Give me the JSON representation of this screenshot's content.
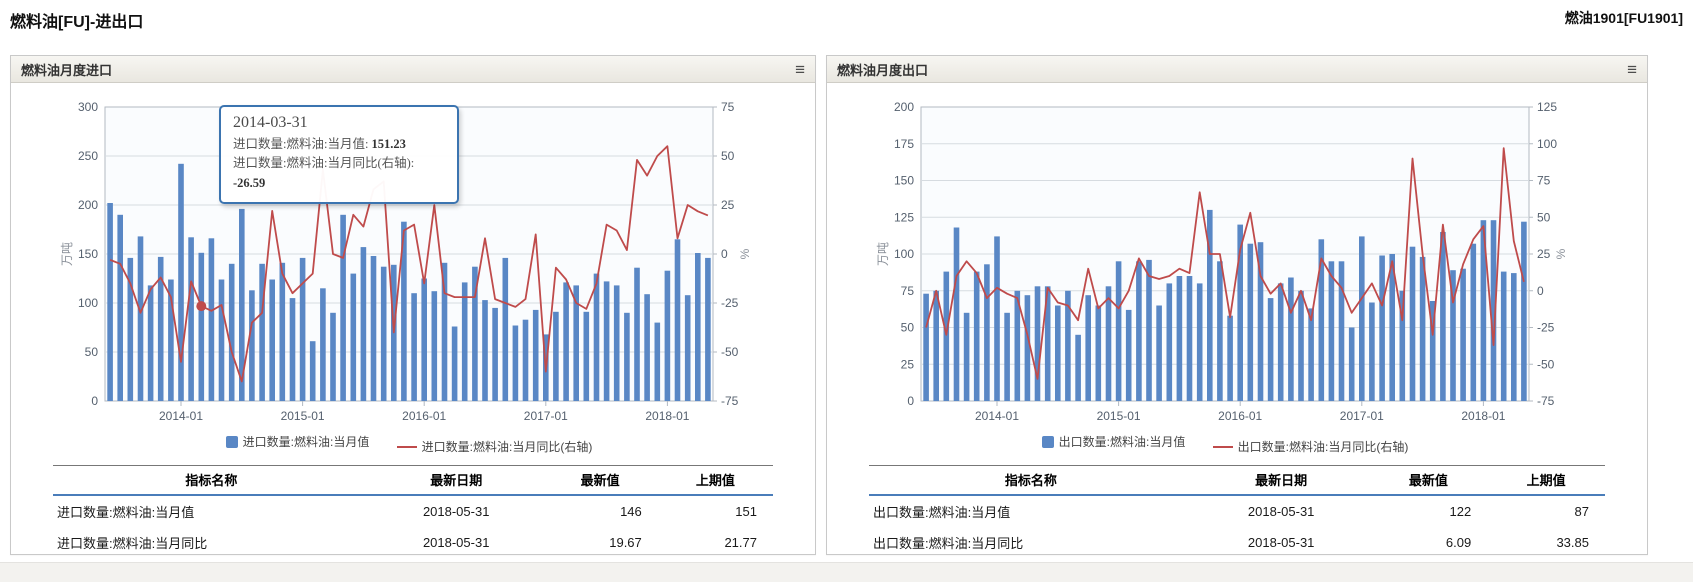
{
  "page": {
    "title": "燃料油[FU]-进出口",
    "contract": "燃油1901[FU1901]"
  },
  "colors": {
    "bar": "#5987c5",
    "line": "#bf4b4b",
    "grid": "#d6dbe0",
    "axis": "#b3bac2",
    "plot_bg": "#fafcfe",
    "accent": "#3b74b0",
    "header_underline": "#4a7dba"
  },
  "months": [
    "2013-06",
    "2013-07",
    "2013-08",
    "2013-09",
    "2013-10",
    "2013-11",
    "2013-12",
    "2014-01",
    "2014-02",
    "2014-03",
    "2014-04",
    "2014-05",
    "2014-06",
    "2014-07",
    "2014-08",
    "2014-09",
    "2014-10",
    "2014-11",
    "2014-12",
    "2015-01",
    "2015-02",
    "2015-03",
    "2015-04",
    "2015-05",
    "2015-06",
    "2015-07",
    "2015-08",
    "2015-09",
    "2015-10",
    "2015-11",
    "2015-12",
    "2016-01",
    "2016-02",
    "2016-03",
    "2016-04",
    "2016-05",
    "2016-06",
    "2016-07",
    "2016-08",
    "2016-09",
    "2016-10",
    "2016-11",
    "2016-12",
    "2017-01",
    "2017-02",
    "2017-03",
    "2017-04",
    "2017-05",
    "2017-06",
    "2017-07",
    "2017-08",
    "2017-09",
    "2017-10",
    "2017-11",
    "2017-12",
    "2018-01",
    "2018-02",
    "2018-03",
    "2018-04",
    "2018-05"
  ],
  "x_ticks": [
    "2014-01",
    "2015-01",
    "2016-01",
    "2017-01",
    "2018-01"
  ],
  "left_panel": {
    "title": "燃料油月度进口",
    "chart_data": {
      "type": "bar+line",
      "ylabel": "万吨",
      "y2label": "%",
      "left_axis": {
        "min": 0,
        "max": 300,
        "step": 50
      },
      "right_axis": {
        "min": -75,
        "max": 75,
        "step": 25
      },
      "series": [
        {
          "name": "进口数量:燃料油:当月值",
          "type": "bar",
          "axis": "left",
          "values": [
            202,
            190,
            146,
            168,
            118,
            147,
            124,
            242,
            167,
            151.23,
            166,
            124,
            140,
            196,
            113,
            140,
            124,
            141,
            105,
            146,
            61,
            115,
            90,
            190,
            130,
            157,
            148,
            137,
            139,
            183,
            110,
            125,
            112,
            141,
            76,
            121,
            137,
            103,
            95,
            146,
            77,
            83,
            93,
            68,
            91,
            121,
            118,
            91,
            130,
            122,
            118,
            90,
            136,
            109,
            80,
            133,
            165,
            108,
            151,
            146
          ]
        },
        {
          "name": "进口数量:燃料油:当月同比(右轴)",
          "type": "line",
          "axis": "right",
          "values": [
            -3,
            -5,
            -15,
            -30,
            -18,
            -12,
            -22,
            -55,
            -14,
            -26.59,
            -29,
            -26,
            -50,
            -65,
            -35,
            -30,
            22,
            -10,
            -20,
            -15,
            -10,
            43,
            0,
            -2,
            20,
            14,
            33,
            37,
            -40,
            12,
            15,
            -15,
            25,
            -20,
            -22,
            -22,
            -22,
            8,
            -23,
            -25,
            -27,
            -23,
            10,
            -60,
            -7,
            -13,
            -25,
            -28,
            -15,
            15,
            12,
            2,
            48,
            40,
            50,
            55,
            8,
            25,
            21.77,
            19.67
          ]
        }
      ],
      "marker_month": "2014-03"
    },
    "legend": [
      {
        "label": "进口数量:燃料油:当月值"
      },
      {
        "label": "进口数量:燃料油:当月同比(右轴)"
      }
    ],
    "tooltip": {
      "title": "2014-03-31",
      "lines": [
        {
          "label": "进口数量:燃料油:当月值:",
          "value": "151.23"
        },
        {
          "label": "进口数量:燃料油:当月同比(右轴):",
          "value": "-26.59"
        }
      ]
    },
    "table": {
      "headers": [
        "指标名称",
        "最新日期",
        "最新值",
        "上期值"
      ],
      "rows": [
        [
          "进口数量:燃料油:当月值",
          "2018-05-31",
          "146",
          "151"
        ],
        [
          "进口数量:燃料油:当月同比",
          "2018-05-31",
          "19.67",
          "21.77"
        ]
      ]
    }
  },
  "right_panel": {
    "title": "燃料油月度出口",
    "chart_data": {
      "type": "bar+line",
      "ylabel": "万吨",
      "y2label": "%",
      "left_axis": {
        "min": 0,
        "max": 200,
        "step": 25
      },
      "right_axis": {
        "min": -75,
        "max": 125,
        "step": 25
      },
      "series": [
        {
          "name": "出口数量:燃料油:当月值",
          "type": "bar",
          "axis": "left",
          "values": [
            73,
            75,
            88,
            118,
            60,
            88,
            93,
            112,
            60,
            75,
            72,
            78,
            78,
            65,
            75,
            45,
            72,
            65,
            78,
            95,
            62,
            95,
            96,
            65,
            80,
            85,
            85,
            80,
            130,
            95,
            58,
            120,
            107,
            108,
            70,
            80,
            84,
            75,
            63,
            110,
            95,
            95,
            50,
            112,
            67,
            99,
            100,
            75,
            105,
            98,
            68,
            115,
            89,
            90,
            107,
            123,
            123,
            88,
            87,
            122
          ]
        },
        {
          "name": "出口数量:燃料油:当月同比(右轴)",
          "type": "line",
          "axis": "right",
          "values": [
            -25,
            0,
            -30,
            10,
            20,
            12,
            -5,
            2,
            -2,
            -5,
            -30,
            -60,
            2,
            -8,
            -10,
            -20,
            15,
            -12,
            -5,
            -12,
            0,
            22,
            10,
            8,
            10,
            15,
            12,
            67,
            25,
            25,
            -18,
            28,
            53,
            10,
            -2,
            5,
            -15,
            0,
            -20,
            22,
            10,
            2,
            -15,
            -5,
            5,
            -10,
            20,
            -20,
            90,
            25,
            -30,
            45,
            -8,
            18,
            35,
            44,
            -37,
            97,
            33.85,
            6.09
          ]
        }
      ]
    },
    "legend": [
      {
        "label": "出口数量:燃料油:当月值"
      },
      {
        "label": "出口数量:燃料油:当月同比(右轴)"
      }
    ],
    "table": {
      "headers": [
        "指标名称",
        "最新日期",
        "最新值",
        "上期值"
      ],
      "rows": [
        [
          "出口数量:燃料油:当月值",
          "2018-05-31",
          "122",
          "87"
        ],
        [
          "出口数量:燃料油:当月同比",
          "2018-05-31",
          "6.09",
          "33.85"
        ]
      ]
    }
  }
}
